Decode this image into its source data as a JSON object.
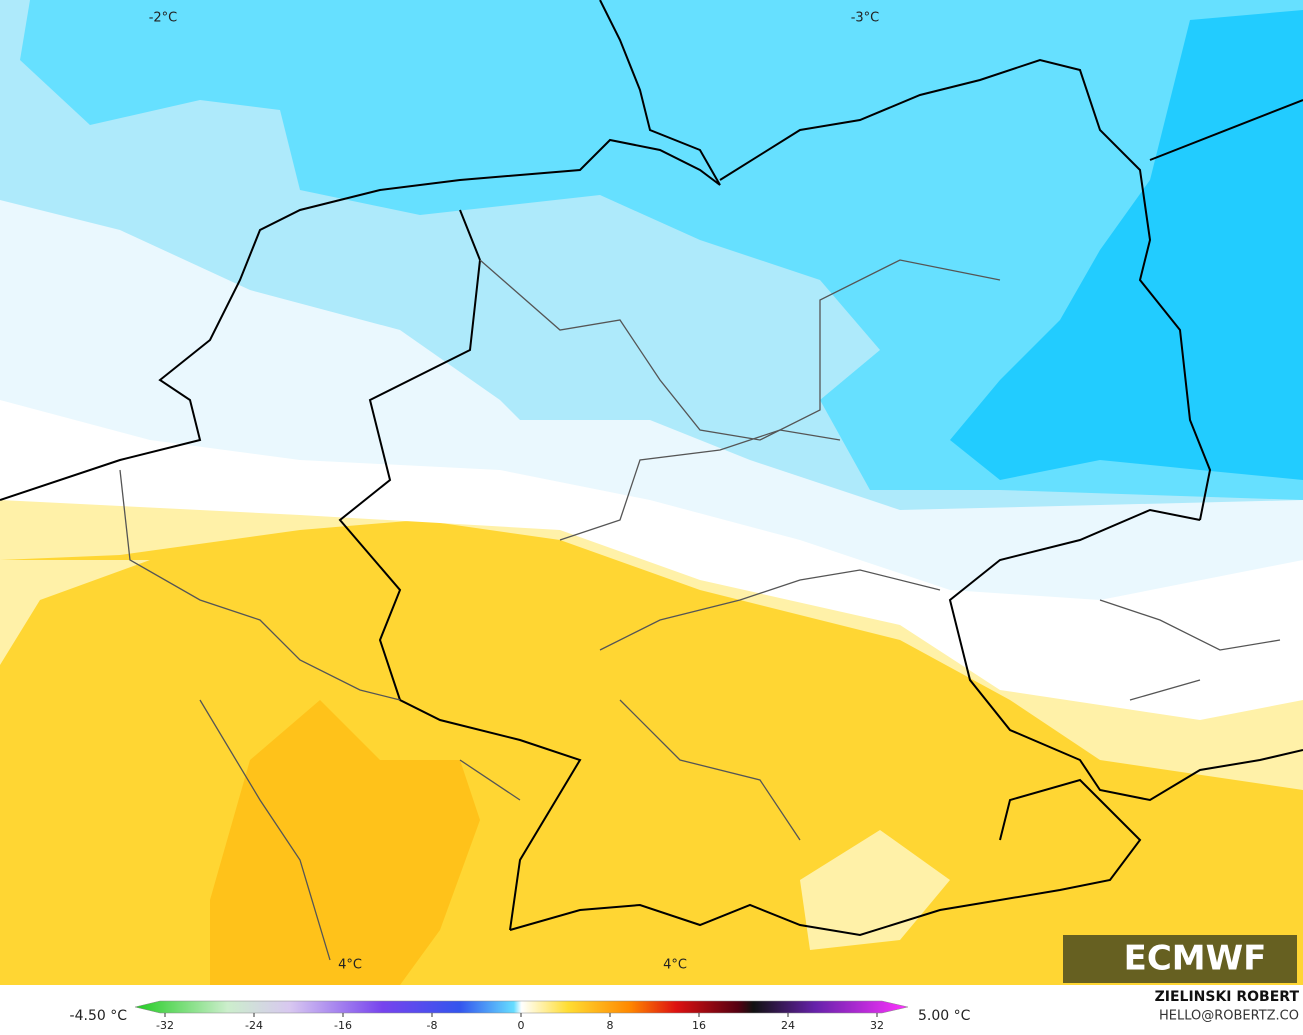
{
  "map": {
    "labels": [
      "-2°C",
      "-3°C",
      "4°C",
      "4°C"
    ]
  },
  "legend": {
    "min_label": "-4.50 °C",
    "max_label": "5.00 °C",
    "ticks": [
      -32,
      -24,
      -16,
      -8,
      0,
      8,
      16,
      24,
      32
    ]
  },
  "credits": {
    "author": "ZIELINSKI ROBERT",
    "contact": "HELLO@ROBERTZ.CO",
    "logo": "ECMWF"
  }
}
